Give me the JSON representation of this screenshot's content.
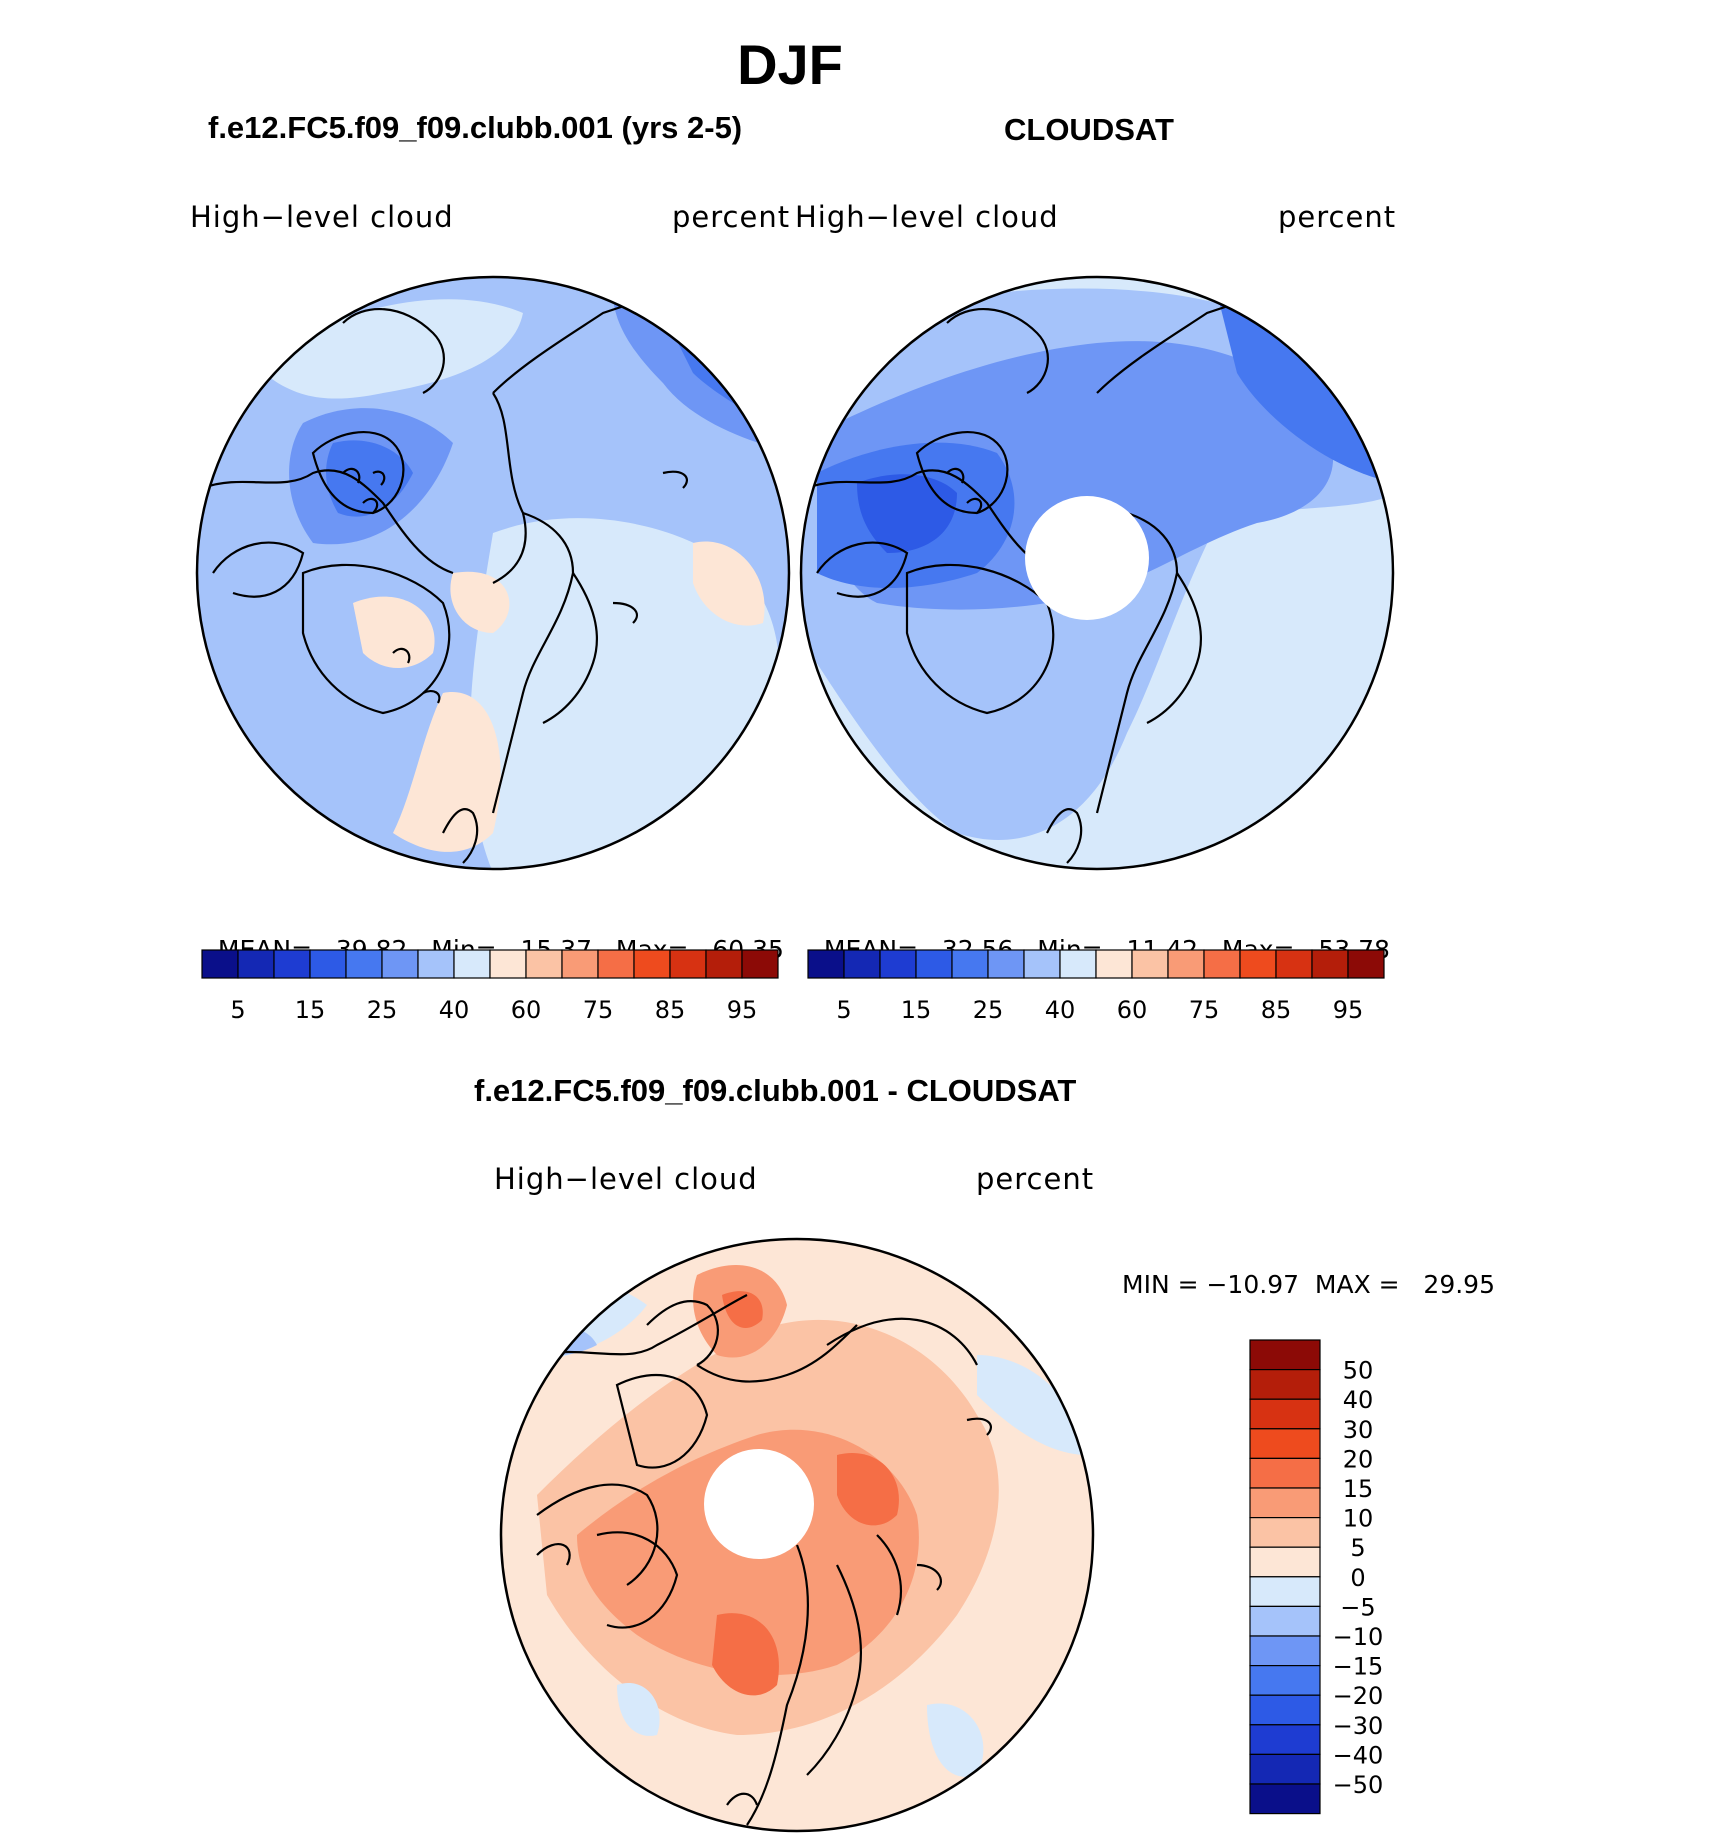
{
  "figure": {
    "title": "DJF",
    "panels": [
      {
        "id": "model",
        "header": "f.e12.FC5.f09_f09.clubb.001 (yrs 2-5)",
        "variable": "High−level  cloud",
        "units": "percent",
        "stats": {
          "mean_label": "MEAN=",
          "mean": "39.82",
          "min_label": "Min=",
          "min": "15.37",
          "max_label": "Max=",
          "max": "60.35"
        },
        "pole_gap": false
      },
      {
        "id": "obs",
        "header": "CLOUDSAT",
        "variable": "High−level  cloud",
        "units": "percent",
        "stats": {
          "mean_label": "MEAN=",
          "mean": "32.56",
          "min_label": "Min=",
          "min": "11.42",
          "max_label": "Max=",
          "max": "53.78"
        },
        "pole_gap": true
      },
      {
        "id": "diff",
        "header": "f.e12.FC5.f09_f09.clubb.001 - CLOUDSAT",
        "variable": "High−level  cloud",
        "units": "percent",
        "minmax_text": "MIN = −10.97  MAX =   29.95",
        "pole_gap": true
      }
    ]
  },
  "colorbars": {
    "abs_levels": [
      "5",
      "15",
      "25",
      "40",
      "60",
      "75",
      "85",
      "95"
    ],
    "abs_colors": [
      "#0a0f8a",
      "#1428b4",
      "#1e3cd2",
      "#2d5ae6",
      "#4678f0",
      "#6e96f5",
      "#a5c3fa",
      "#d7e9fb",
      "#fde6d6",
      "#fbc3a5",
      "#f99b76",
      "#f56e46",
      "#ee4b1e",
      "#d73212",
      "#b41e0a",
      "#8c0a06"
    ],
    "diff_levels": [
      "50",
      "40",
      "30",
      "20",
      "15",
      "10",
      "5",
      "0",
      "−5",
      "−10",
      "−15",
      "−20",
      "−30",
      "−40",
      "−50"
    ],
    "diff_colors": [
      "#8c0a06",
      "#b41e0a",
      "#d73212",
      "#ee4b1e",
      "#f56e46",
      "#f99b76",
      "#fbc3a5",
      "#fde6d6",
      "#d7e9fb",
      "#a5c3fa",
      "#6e96f5",
      "#4678f0",
      "#2d5ae6",
      "#1e3cd2",
      "#1428b4",
      "#0a0f8a"
    ]
  },
  "map_colors": {
    "ocean_blue_light": "#d7e9fb",
    "blue_mid": "#a5c3fa",
    "blue_strong": "#6e96f5",
    "blue_deep": "#4678f0",
    "blue_deepest": "#2d5ae6",
    "peach": "#fde6d6",
    "salmon_light": "#fbc3a5",
    "salmon": "#f99b76",
    "orange": "#f56e46",
    "orange_deep": "#ee4b1e"
  }
}
